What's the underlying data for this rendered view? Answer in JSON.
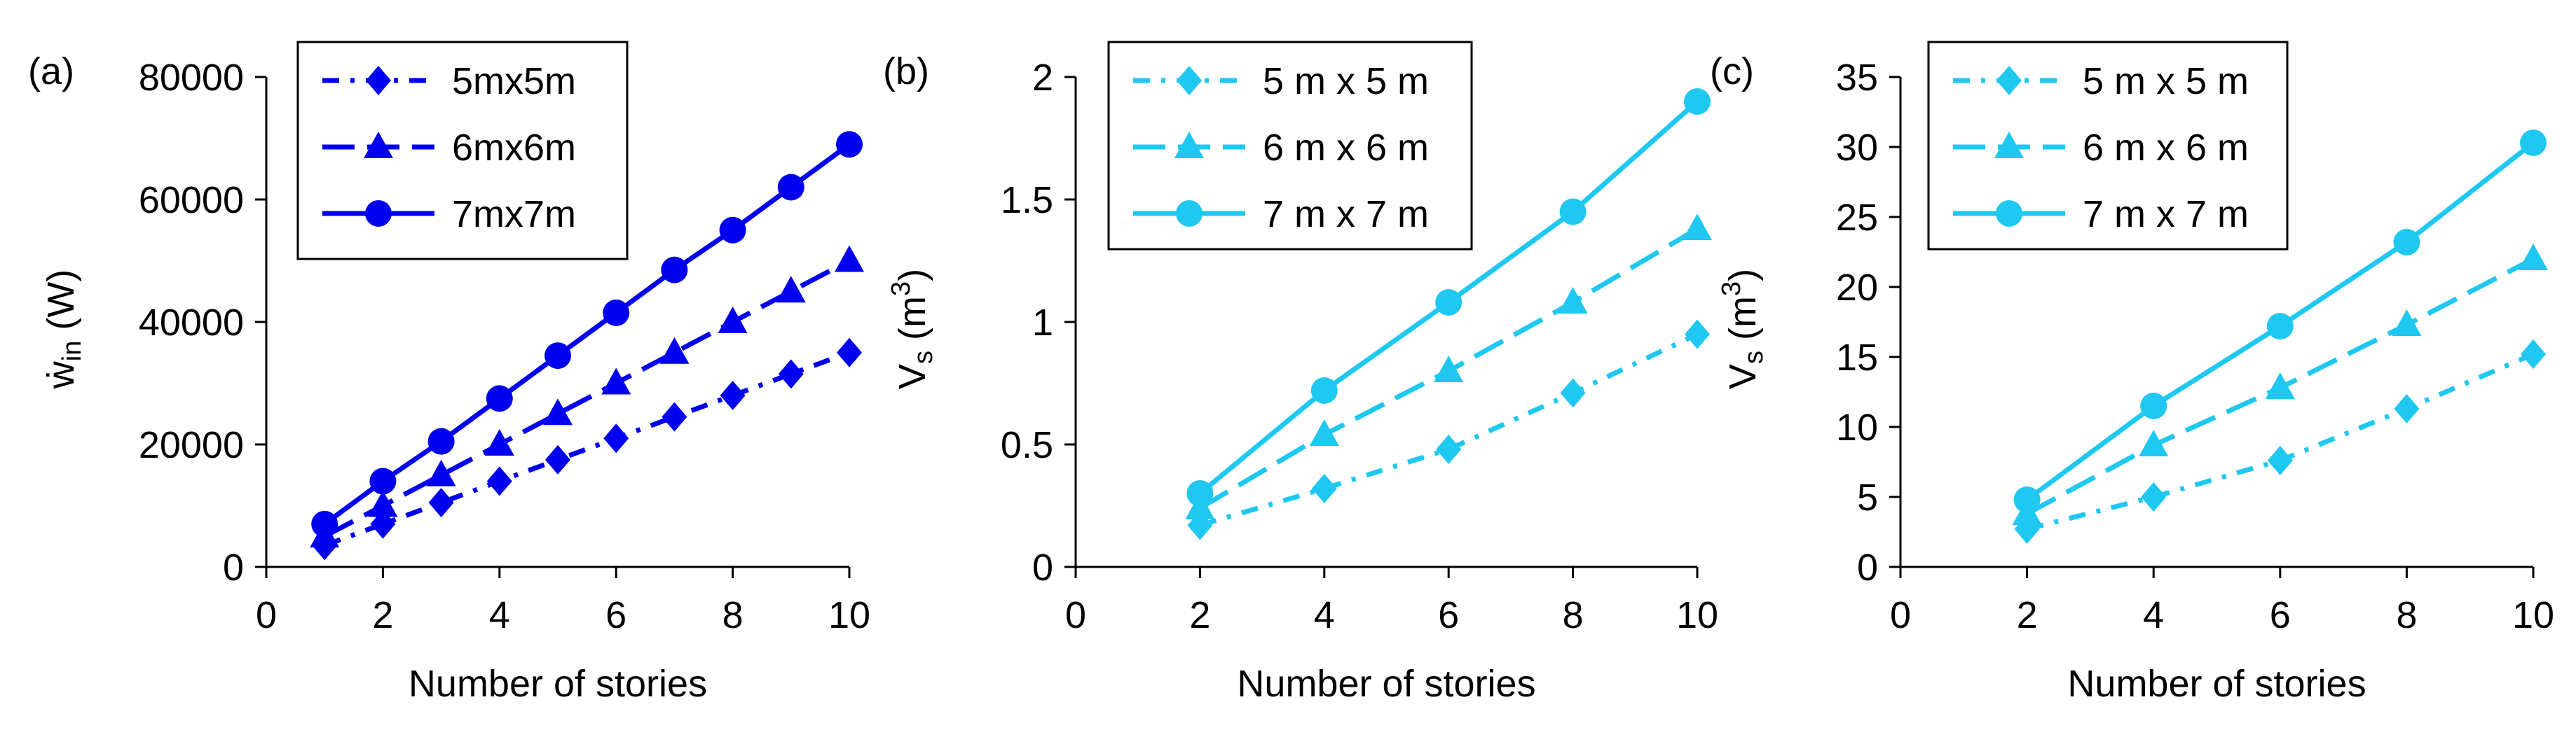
{
  "chart_data": [
    {
      "panel_label": "(a)",
      "type": "line",
      "ylabel_main": "ẇ",
      "ylabel_sub": "in",
      "ylabel_unit": " (W)",
      "xlabel": "Number of stories",
      "xlim": [
        0,
        10
      ],
      "ylim": [
        0,
        80000
      ],
      "xticks": [
        "0",
        "2",
        "4",
        "6",
        "8",
        "10"
      ],
      "yticks": [
        "0",
        "20000",
        "40000",
        "60000",
        "80000"
      ],
      "grid": false,
      "legend_position": "top-left",
      "color": "#0000EE",
      "series": [
        {
          "name": "5mx5m",
          "marker": "diamond",
          "dash": "dash-dot",
          "x": [
            1,
            2,
            3,
            4,
            5,
            6,
            7,
            8,
            9,
            10
          ],
          "y": [
            3500,
            7000,
            10500,
            14000,
            17500,
            21000,
            24500,
            28000,
            31500,
            35000
          ]
        },
        {
          "name": "6mx6m",
          "marker": "triangle",
          "dash": "long-dash",
          "x": [
            1,
            2,
            3,
            4,
            5,
            6,
            7,
            8,
            9,
            10
          ],
          "y": [
            5000,
            10000,
            15000,
            20000,
            25000,
            30000,
            35000,
            40000,
            45000,
            50000
          ]
        },
        {
          "name": "7mx7m",
          "marker": "circle",
          "dash": "solid",
          "x": [
            1,
            2,
            3,
            4,
            5,
            6,
            7,
            8,
            9,
            10
          ],
          "y": [
            7000,
            14000,
            20500,
            27500,
            34500,
            41500,
            48500,
            55000,
            62000,
            69000
          ]
        }
      ]
    },
    {
      "panel_label": "(b)",
      "type": "line",
      "ylabel_main": "V",
      "ylabel_sub": "s",
      "ylabel_unit": " (m",
      "ylabel_sup": "3",
      "ylabel_close": ")",
      "xlabel": "Number of stories",
      "xlim": [
        0,
        10
      ],
      "ylim": [
        0,
        2
      ],
      "xticks": [
        "0",
        "2",
        "4",
        "6",
        "8",
        "10"
      ],
      "yticks": [
        "0",
        "0.5",
        "1",
        "1.5",
        "2"
      ],
      "grid": false,
      "legend_position": "top-left",
      "color": "#1EC8F0",
      "series": [
        {
          "name": "5 m x 5 m",
          "marker": "diamond",
          "dash": "dash-dot",
          "x": [
            2,
            4,
            6,
            8,
            10
          ],
          "y": [
            0.17,
            0.32,
            0.48,
            0.71,
            0.95
          ]
        },
        {
          "name": "6 m x 6 m",
          "marker": "triangle",
          "dash": "long-dash",
          "x": [
            2,
            4,
            6,
            8,
            10
          ],
          "y": [
            0.24,
            0.54,
            0.8,
            1.08,
            1.38
          ]
        },
        {
          "name": "7 m x 7 m",
          "marker": "circle",
          "dash": "solid",
          "x": [
            2,
            4,
            6,
            8,
            10
          ],
          "y": [
            0.3,
            0.72,
            1.08,
            1.45,
            1.9
          ]
        }
      ]
    },
    {
      "panel_label": "(c)",
      "type": "line",
      "ylabel_main": "V",
      "ylabel_sub": "s",
      "ylabel_unit": " (m",
      "ylabel_sup": "3",
      "ylabel_close": ")",
      "xlabel": "Number of stories",
      "xlim": [
        0,
        10
      ],
      "ylim": [
        0,
        35
      ],
      "xticks": [
        "0",
        "2",
        "4",
        "6",
        "8",
        "10"
      ],
      "yticks": [
        "0",
        "5",
        "10",
        "15",
        "20",
        "25",
        "30",
        "35"
      ],
      "grid": false,
      "legend_position": "top-left",
      "color": "#1EC8F0",
      "series": [
        {
          "name": "5 m x 5 m",
          "marker": "diamond",
          "dash": "dash-dot",
          "x": [
            2,
            4,
            6,
            8,
            10
          ],
          "y": [
            2.7,
            5.0,
            7.6,
            11.3,
            15.2
          ]
        },
        {
          "name": "6 m x 6 m",
          "marker": "triangle",
          "dash": "long-dash",
          "x": [
            2,
            4,
            6,
            8,
            10
          ],
          "y": [
            3.8,
            8.7,
            12.8,
            17.3,
            22.0
          ]
        },
        {
          "name": "7 m x 7 m",
          "marker": "circle",
          "dash": "solid",
          "x": [
            2,
            4,
            6,
            8,
            10
          ],
          "y": [
            4.8,
            11.5,
            17.2,
            23.2,
            30.3
          ]
        }
      ]
    }
  ]
}
